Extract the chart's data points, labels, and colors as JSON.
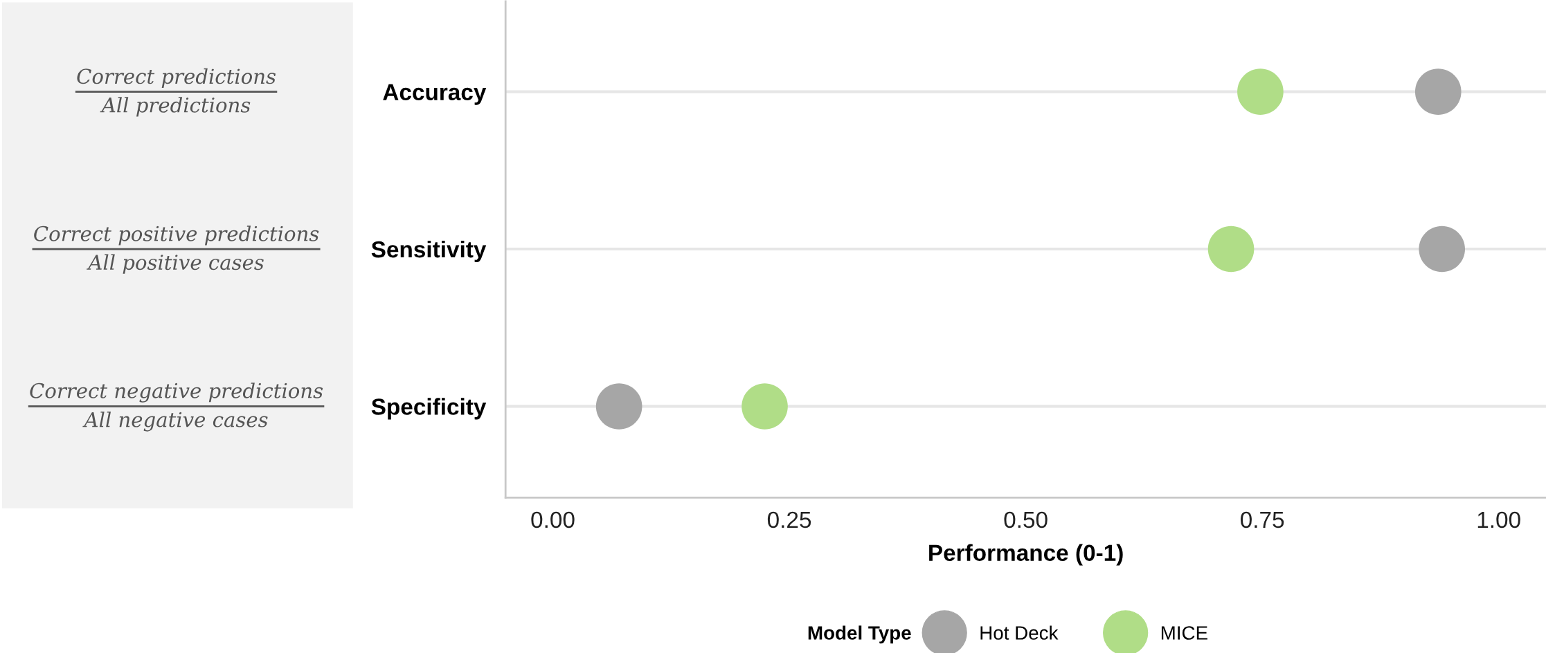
{
  "chart_data": {
    "type": "scatter",
    "xlabel": "Performance (0-1)",
    "legend_title": "Model Type",
    "categories": [
      "Accuracy",
      "Sensitivity",
      "Specificity"
    ],
    "series": [
      {
        "name": "Hot Deck",
        "color": "#a6a6a6",
        "values": [
          0.936,
          0.94,
          0.07
        ]
      },
      {
        "name": "MICE",
        "color": "#b0dd87",
        "values": [
          0.748,
          0.717,
          0.224
        ]
      }
    ],
    "orientation": "horizontal",
    "xlim": [
      -0.05,
      1.05
    ],
    "xticks": [
      {
        "value": 0,
        "label": "0.00"
      },
      {
        "value": 0.25,
        "label": "0.25"
      },
      {
        "value": 0.5,
        "label": "0.50"
      },
      {
        "value": 0.75,
        "label": "0.75"
      },
      {
        "value": 1,
        "label": "1.00"
      }
    ],
    "grid": "y",
    "legend": "bottom",
    "marker": "circle",
    "annotations": [
      "Correct predictions",
      "All predictions",
      "Correct positive predictions",
      "All positive cases",
      "Correct negative predictions",
      "All negative cases"
    ]
  }
}
